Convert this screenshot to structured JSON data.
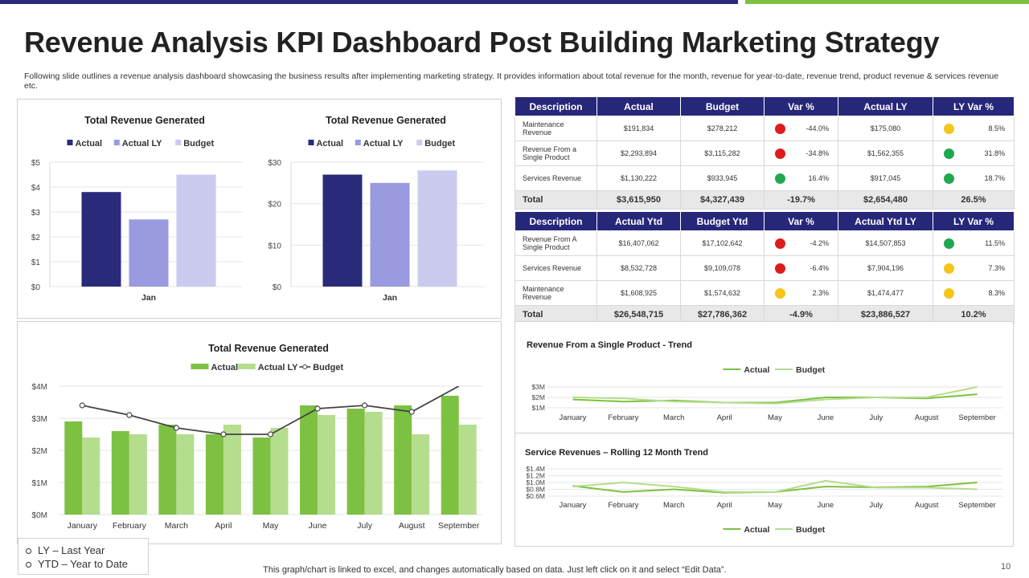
{
  "header": {
    "title": "Revenue Analysis KPI Dashboard Post Building Marketing Strategy",
    "subtitle": "Following slide outlines a revenue analysis dashboard showcasing the business results after implementing marketing strategy. It provides information about total revenue for the month, revenue for year-to-date, revenue trend, product revenue & services revenue etc."
  },
  "chart_data": [
    {
      "type": "bar",
      "title": "Total Revenue Generated",
      "categories": [
        "Jan"
      ],
      "series": [
        {
          "name": "Actual",
          "values": [
            3.8
          ]
        },
        {
          "name": "Actual LY",
          "values": [
            2.7
          ]
        },
        {
          "name": "Budget",
          "values": [
            4.5
          ]
        }
      ],
      "ylim": [
        0,
        5
      ],
      "yticks": [
        "$0",
        "$1",
        "$2",
        "$3",
        "$4",
        "$5"
      ],
      "colors": [
        "#2a2a7a",
        "#9a9ae0",
        "#cbcbef"
      ]
    },
    {
      "type": "bar",
      "title": "Total Revenue Generated",
      "categories": [
        "Jan"
      ],
      "series": [
        {
          "name": "Actual",
          "values": [
            27
          ]
        },
        {
          "name": "Actual LY",
          "values": [
            25
          ]
        },
        {
          "name": "Budget",
          "values": [
            28
          ]
        }
      ],
      "ylim": [
        0,
        30
      ],
      "yticks": [
        "$0",
        "$10",
        "$20",
        "$30"
      ],
      "colors": [
        "#2a2a7a",
        "#9a9ae0",
        "#cbcbef"
      ]
    },
    {
      "type": "bar",
      "title": "Total Revenue Generated",
      "categories": [
        "January",
        "February",
        "March",
        "April",
        "May",
        "June",
        "July",
        "August",
        "September"
      ],
      "series": [
        {
          "name": "Actual",
          "kind": "bar",
          "values": [
            2.9,
            2.6,
            2.8,
            2.5,
            2.4,
            3.4,
            3.3,
            3.4,
            3.7
          ]
        },
        {
          "name": "Actual LY",
          "kind": "bar",
          "values": [
            2.4,
            2.5,
            2.5,
            2.8,
            2.7,
            3.1,
            3.2,
            2.5,
            2.8
          ]
        },
        {
          "name": "Budget",
          "kind": "line",
          "values": [
            3.4,
            3.1,
            2.7,
            2.5,
            2.5,
            3.3,
            3.4,
            3.2,
            4.0
          ]
        }
      ],
      "ylim": [
        0,
        4
      ],
      "yticks": [
        "$0M",
        "$1M",
        "$2M",
        "$3M",
        "$4M"
      ],
      "colors": [
        "#7dc142",
        "#b5dd8e",
        "#444444"
      ]
    },
    {
      "type": "line",
      "title": "Revenue From a Single Product - Trend",
      "categories": [
        "January",
        "February",
        "March",
        "April",
        "May",
        "June",
        "July",
        "August",
        "September"
      ],
      "series": [
        {
          "name": "Actual",
          "values": [
            1.8,
            1.6,
            1.7,
            1.5,
            1.5,
            2.0,
            2.0,
            1.9,
            2.3
          ]
        },
        {
          "name": "Budget",
          "values": [
            2.0,
            1.9,
            1.6,
            1.5,
            1.4,
            1.8,
            2.0,
            2.0,
            3.0
          ]
        }
      ],
      "ylim": [
        1,
        3
      ],
      "yticks": [
        "$1M",
        "$2M",
        "$3M"
      ],
      "colors": [
        "#7dc142",
        "#b5dd8e"
      ]
    },
    {
      "type": "line",
      "title": "Service Revenues – Rolling 12 Month Trend",
      "categories": [
        "January",
        "February",
        "March",
        "April",
        "May",
        "June",
        "July",
        "August",
        "September"
      ],
      "series": [
        {
          "name": "Actual",
          "values": [
            0.9,
            0.72,
            0.8,
            0.7,
            0.72,
            0.88,
            0.86,
            0.88,
            1.0
          ]
        },
        {
          "name": "Budget",
          "values": [
            0.88,
            1.0,
            0.88,
            0.72,
            0.72,
            1.05,
            0.85,
            0.85,
            0.8
          ]
        }
      ],
      "ylim": [
        0.6,
        1.4
      ],
      "yticks": [
        "$0.6M",
        "$0.8M",
        "$1.0M",
        "$1.2M",
        "$1.4M"
      ],
      "colors": [
        "#7dc142",
        "#b5dd8e"
      ]
    }
  ],
  "table_month": {
    "headers": [
      "Description",
      "Actual",
      "Budget",
      "Var %",
      "Actual LY",
      "LY Var %"
    ],
    "rows": [
      {
        "desc": "Maintenance Revenue",
        "actual": "$191,834",
        "budget": "$278,212",
        "var_color": "#e01b1b",
        "var": "-44.0%",
        "ly": "$175,080",
        "lyvar_color": "#f5c518",
        "lyvar": "8.5%"
      },
      {
        "desc": "Revenue From a Single Product",
        "actual": "$2,293,894",
        "budget": "$3,115,282",
        "var_color": "#e01b1b",
        "var": "-34.8%",
        "ly": "$1,562,355",
        "lyvar_color": "#1fa84f",
        "lyvar": "31.8%"
      },
      {
        "desc": "Services Revenue",
        "actual": "$1,130,222",
        "budget": "$933,945",
        "var_color": "#1fa84f",
        "var": "16.4%",
        "ly": "$917,045",
        "lyvar_color": "#1fa84f",
        "lyvar": "18.7%"
      }
    ],
    "total": {
      "desc": "Total",
      "actual": "$3,615,950",
      "budget": "$4,327,439",
      "var": "-19.7%",
      "ly": "$2,654,480",
      "lyvar": "26.5%"
    }
  },
  "table_ytd": {
    "headers": [
      "Description",
      "Actual Ytd",
      "Budget Ytd",
      "Var %",
      "Actual Ytd LY",
      "LY Var %"
    ],
    "rows": [
      {
        "desc": "Revenue From A Single Product",
        "actual": "$16,407,062",
        "budget": "$17,102,642",
        "var_color": "#e01b1b",
        "var": "-4.2%",
        "ly": "$14,507,853",
        "lyvar_color": "#1fa84f",
        "lyvar": "11.5%"
      },
      {
        "desc": "Services Revenue",
        "actual": "$8,532,728",
        "budget": "$9,109,078",
        "var_color": "#e01b1b",
        "var": "-6.4%",
        "ly": "$7,904,196",
        "lyvar_color": "#f5c518",
        "lyvar": "7.3%"
      },
      {
        "desc": "Maintenance Revenue",
        "actual": "$1,608,925",
        "budget": "$1,574,632",
        "var_color": "#f5c518",
        "var": "2.3%",
        "ly": "$1,474,477",
        "lyvar_color": "#f5c518",
        "lyvar": "8.3%"
      }
    ],
    "total": {
      "desc": "Total",
      "actual": "$26,548,715",
      "budget": "$27,786,362",
      "var": "-4.9%",
      "ly": "$23,886,527",
      "lyvar": "10.2%"
    }
  },
  "legend_note": {
    "ly": "LY – Last Year",
    "ytd": "YTD – Year to Date"
  },
  "footer": {
    "note": "This graph/chart is linked to excel, and changes automatically based on data. Just left click on it and select “Edit Data”.",
    "page": "10"
  }
}
